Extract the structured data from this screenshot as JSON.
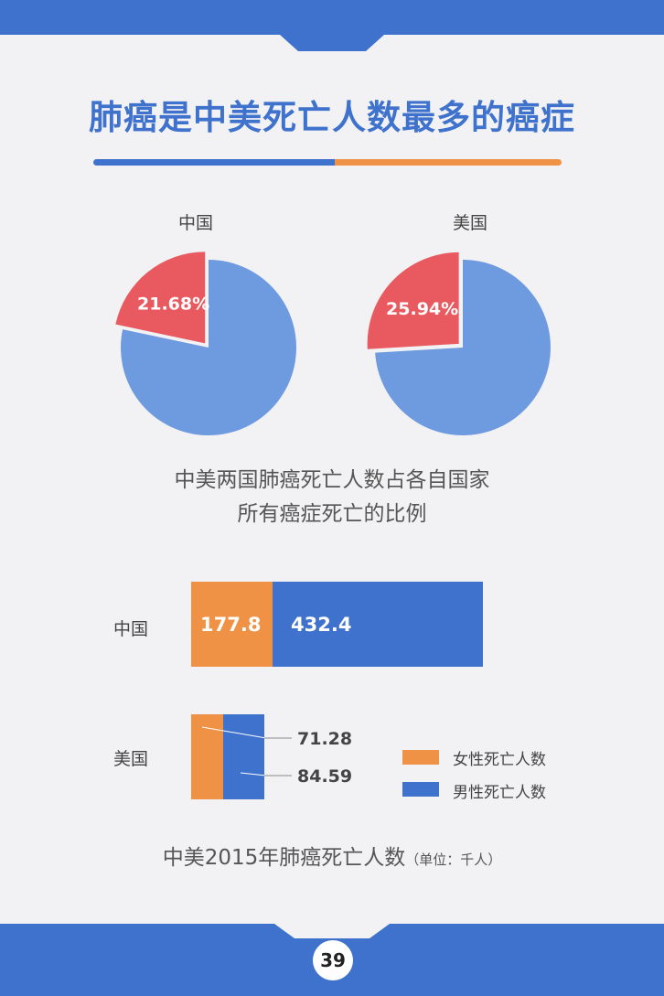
{
  "title": "肺癌是中美死亡人数最多的癌症",
  "colors": {
    "blue": "#3f72cc",
    "pie_blue": "#6e9ae0",
    "red": "#e85a5f",
    "orange": "#ef9246",
    "background": "#f2f2f4"
  },
  "chart_data": [
    {
      "type": "pie",
      "title": "中国",
      "slices": [
        {
          "label": "21.68%",
          "value": 21.68
        },
        {
          "label": "",
          "value": 78.32
        }
      ],
      "caption_line1": "中美两国肺癌死亡人数占各自国家",
      "caption_line2": "所有癌症死亡的比例"
    },
    {
      "type": "pie",
      "title": "美国",
      "slices": [
        {
          "label": "25.94%",
          "value": 25.94
        },
        {
          "label": "",
          "value": 74.06
        }
      ]
    },
    {
      "type": "bar",
      "orientation": "horizontal",
      "stacked": true,
      "categories": [
        "中国",
        "美国"
      ],
      "series": [
        {
          "name": "女性死亡人数",
          "values": [
            177.8,
            71.28
          ]
        },
        {
          "name": "男性死亡人数",
          "values": [
            432.4,
            84.59
          ]
        }
      ],
      "value_labels": {
        "cn_female": "177.8",
        "cn_male": "432.4",
        "us_female": "71.28",
        "us_male": "84.59"
      },
      "title": "中美2015年肺癌死亡人数",
      "unit": "（单位：千人）",
      "legend_position": "right"
    }
  ],
  "page_number": "39"
}
